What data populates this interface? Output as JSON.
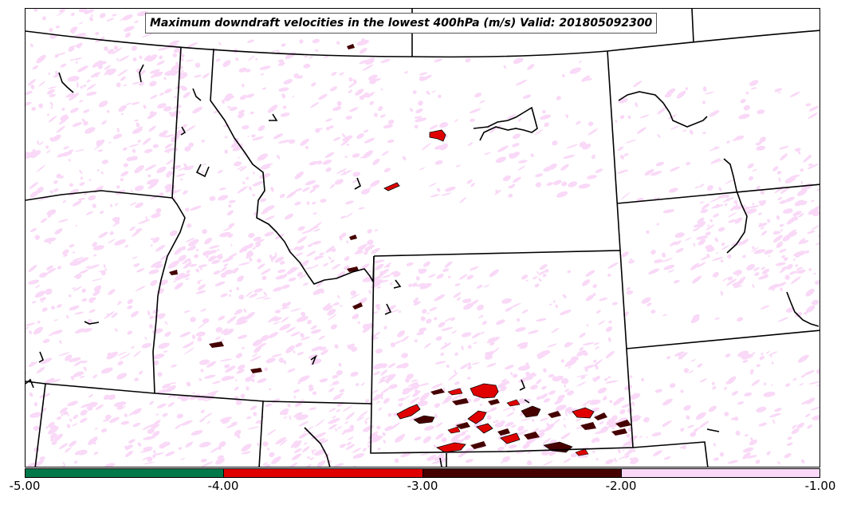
{
  "title": "Maximum downdraft velocities in the lowest 400hPa (m/s) Valid: 201805092300",
  "colorbar": {
    "ticks": [
      "-5.00",
      "-4.00",
      "-3.00",
      "-2.00",
      "-1.00"
    ],
    "bins": [
      {
        "range": [
          -5.0,
          -4.0
        ],
        "color": "#00784a"
      },
      {
        "range": [
          -4.0,
          -3.0
        ],
        "color": "#e00000"
      },
      {
        "range": [
          -3.0,
          -2.0
        ],
        "color": "#450000"
      },
      {
        "range": [
          -2.0,
          -1.0
        ],
        "color": "#f9d9f7"
      }
    ]
  },
  "colors": {
    "weak": "#f9d9f7",
    "moderate": "#e00000",
    "strong": "#450000",
    "border": "#000000"
  }
}
